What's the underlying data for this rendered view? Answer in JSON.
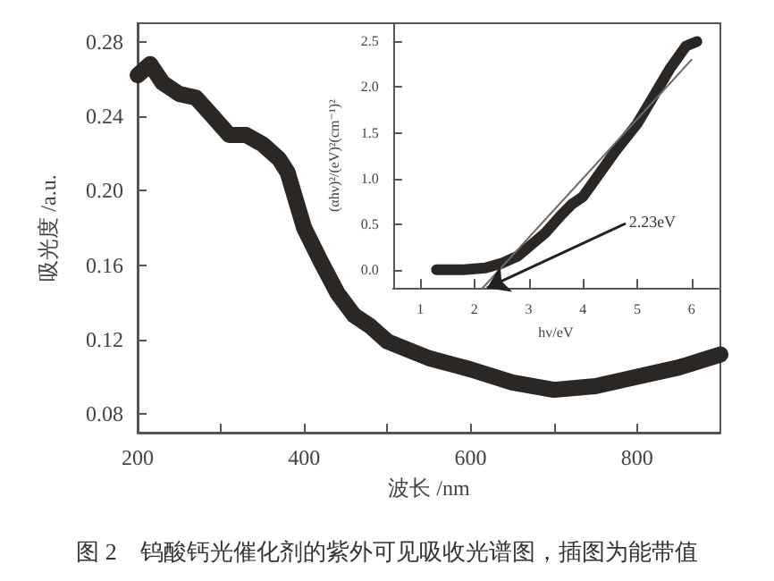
{
  "chart_data": [
    {
      "type": "line",
      "xlabel": "波长 /nm",
      "ylabel": "吸光度 /a.u.",
      "x": [
        200,
        215,
        230,
        250,
        270,
        290,
        310,
        330,
        350,
        370,
        380,
        400,
        420,
        440,
        460,
        480,
        500,
        550,
        600,
        650,
        700,
        750,
        800,
        850,
        900
      ],
      "series": [
        {
          "color": "#2b2724",
          "values": [
            0.262,
            0.268,
            0.258,
            0.252,
            0.25,
            0.24,
            0.23,
            0.23,
            0.225,
            0.217,
            0.21,
            0.18,
            0.162,
            0.145,
            0.133,
            0.127,
            0.119,
            0.11,
            0.104,
            0.097,
            0.093,
            0.095,
            0.1,
            0.105,
            0.112
          ]
        }
      ],
      "xlim": [
        200,
        900
      ],
      "ylim": [
        0.07,
        0.29
      ],
      "xticks": [
        200,
        {
          "value": 300,
          "label": null
        },
        400,
        {
          "value": 500,
          "label": null
        },
        600,
        {
          "value": 700,
          "label": null
        },
        800
      ],
      "yticks": [
        0.08,
        0.12,
        0.16,
        {
          "value": 0.2,
          "label": "0.20"
        },
        0.24,
        0.28
      ],
      "grid": false,
      "marker": "none",
      "line_style": "solid",
      "annotations": [
        "图 2　钨酸钙光催化剂的紫外可见吸收光谱图，插图为能带值"
      ]
    },
    {
      "type": "line",
      "xlabel": "hv/eV",
      "ylabel": "(αhν)²/(eV)²(cm⁻¹)²",
      "xlim": [
        0.5,
        6.5
      ],
      "ylim": [
        -0.2,
        2.7
      ],
      "xticks": [
        1,
        2,
        3,
        4,
        5,
        6
      ],
      "yticks": [
        {
          "value": 0,
          "label": "0.0"
        },
        0.5,
        {
          "value": 1,
          "label": "1.0"
        },
        1.5,
        {
          "value": 2,
          "label": "2.0"
        },
        2.5
      ],
      "grid": false,
      "marker": "none",
      "line_style": "solid",
      "series": [
        {
          "color": "#2b2724",
          "x": [
            1.3,
            1.8,
            2.2,
            2.5,
            2.8,
            3.0,
            3.3,
            3.6,
            3.8,
            4.0,
            4.3,
            4.6,
            5.0,
            5.3,
            5.6,
            5.9,
            6.1
          ],
          "values": [
            0.0,
            0.0,
            0.02,
            0.07,
            0.15,
            0.25,
            0.4,
            0.6,
            0.72,
            0.8,
            1.05,
            1.3,
            1.6,
            1.9,
            2.2,
            2.45,
            2.5
          ]
        },
        {
          "type": "line",
          "color": "#6b6b6b",
          "x": [
            2.15,
            6.0
          ],
          "values": [
            -0.2,
            2.3
          ]
        }
      ],
      "annotations": [
        {
          "text": "2.23eV",
          "x": 2.23,
          "y": -0.2
        }
      ]
    }
  ]
}
